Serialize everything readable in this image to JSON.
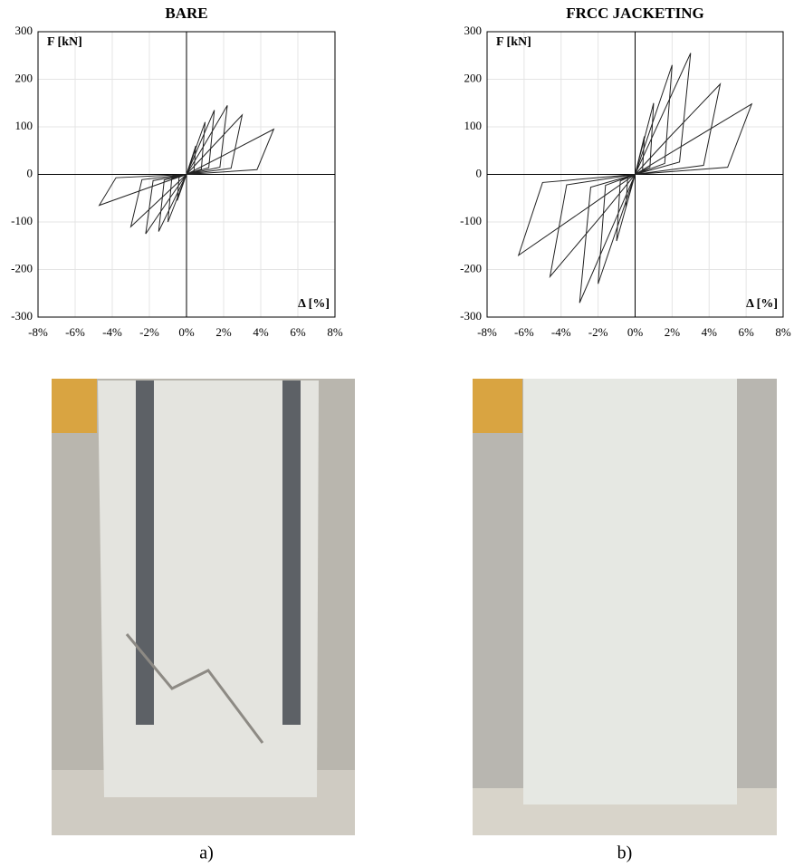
{
  "chart_data": [
    {
      "type": "line",
      "title": "BARE",
      "y_annotation": "F [kN]",
      "x_annotation": "Δ [%]",
      "color": "#222222",
      "grid": true,
      "xlim": [
        -8,
        8
      ],
      "ylim": [
        -300,
        300
      ],
      "xticks": [
        {
          "value": -8,
          "label": "-8%"
        },
        {
          "value": -6,
          "label": "-6%"
        },
        {
          "value": -4,
          "label": "-4%"
        },
        {
          "value": -2,
          "label": "-2%"
        },
        {
          "value": 0,
          "label": "0%"
        },
        {
          "value": 2,
          "label": "2%"
        },
        {
          "value": 4,
          "label": "4%"
        },
        {
          "value": 6,
          "label": "6%"
        },
        {
          "value": 8,
          "label": "8%"
        }
      ],
      "yticks": [
        -300,
        -200,
        -100,
        0,
        100,
        200,
        300
      ],
      "x": [
        0,
        0.2,
        0.5,
        0.4,
        0,
        -0.2,
        -0.5,
        -0.4,
        0,
        0.4,
        1,
        0.8,
        0,
        -0.4,
        -1,
        -0.8,
        0,
        0.6,
        1.5,
        1.2,
        0,
        -0.6,
        -1.5,
        -1.2,
        0,
        0.9,
        2.2,
        1.8,
        0,
        -0.9,
        -2.2,
        -1.8,
        0,
        1.2,
        3,
        2.4,
        0,
        -1.2,
        -3,
        -2.4,
        0,
        1.9,
        4.7,
        3.8,
        0,
        -1.9,
        -4.7,
        -3.8,
        0
      ],
      "values": [
        0,
        24,
        60,
        6,
        0,
        -22,
        -55,
        -6,
        0,
        44,
        110,
        11,
        0,
        -40,
        -100,
        -10,
        0,
        54,
        135,
        14,
        0,
        -48,
        -120,
        -12,
        0,
        58,
        145,
        15,
        0,
        -50,
        -125,
        -13,
        0,
        50,
        125,
        13,
        0,
        -44,
        -110,
        -11,
        0,
        38,
        95,
        10,
        0,
        -26,
        -65,
        -7,
        0
      ]
    },
    {
      "type": "line",
      "title": "FRCC JACKETING",
      "y_annotation": "F [kN]",
      "x_annotation": "Δ [%]",
      "color": "#222222",
      "grid": true,
      "xlim": [
        -8,
        8
      ],
      "ylim": [
        -300,
        300
      ],
      "xticks": [
        {
          "value": -8,
          "label": "-8%"
        },
        {
          "value": -6,
          "label": "-6%"
        },
        {
          "value": -4,
          "label": "-4%"
        },
        {
          "value": -2,
          "label": "-2%"
        },
        {
          "value": 0,
          "label": "0%"
        },
        {
          "value": 2,
          "label": "2%"
        },
        {
          "value": 4,
          "label": "4%"
        },
        {
          "value": 6,
          "label": "6%"
        },
        {
          "value": 8,
          "label": "8%"
        }
      ],
      "yticks": [
        -300,
        -200,
        -100,
        0,
        100,
        200,
        300
      ],
      "x": [
        0,
        0.2,
        0.5,
        0.4,
        0,
        -0.2,
        -0.5,
        -0.4,
        0,
        0.4,
        1,
        0.8,
        0,
        -0.4,
        -1,
        -0.8,
        0,
        0.8,
        2,
        1.6,
        0,
        -0.8,
        -2,
        -1.6,
        0,
        1.2,
        3,
        2.4,
        0,
        -1.2,
        -3,
        -2.4,
        0,
        1.8,
        4.6,
        3.7,
        0,
        -1.8,
        -4.6,
        -3.7,
        0,
        2.5,
        6.3,
        5,
        0,
        -2.5,
        -6.3,
        -5,
        0
      ],
      "values": [
        0,
        32,
        80,
        8,
        0,
        -28,
        -70,
        -7,
        0,
        60,
        150,
        15,
        0,
        -56,
        -140,
        -14,
        0,
        92,
        230,
        23,
        0,
        -92,
        -230,
        -23,
        0,
        102,
        255,
        26,
        0,
        -108,
        -270,
        -27,
        0,
        76,
        190,
        19,
        0,
        -86,
        -215,
        -22,
        0,
        59,
        148,
        15,
        0,
        -68,
        -170,
        -17,
        0
      ]
    }
  ],
  "captions": [
    "a)",
    "b)"
  ]
}
